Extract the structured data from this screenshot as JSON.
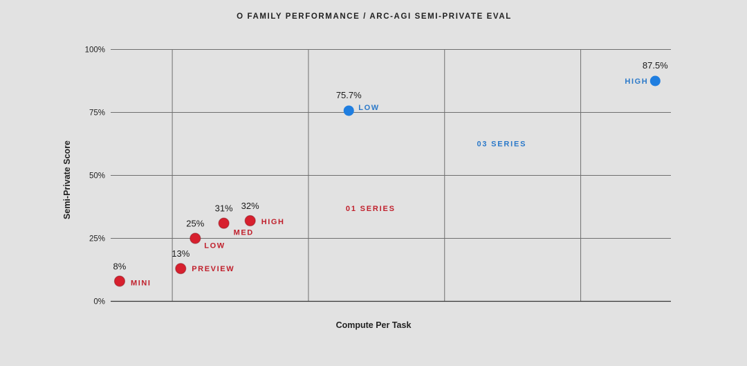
{
  "chart_data": {
    "type": "scatter",
    "title": "O FAMILY PERFORMANCE / ARC-AGI SEMI-PRIVATE EVAL",
    "xlabel": "Compute Per Task",
    "ylabel": "Semi-Private Score",
    "ylim": [
      0,
      100
    ],
    "xlim": [
      0,
      100
    ],
    "yticks": [
      {
        "value": 0,
        "label": "0%"
      },
      {
        "value": 25,
        "label": "25%"
      },
      {
        "value": 50,
        "label": "50%"
      },
      {
        "value": 75,
        "label": "75%"
      },
      {
        "value": 100,
        "label": "100%"
      }
    ],
    "x_gridlines": [
      11,
      35.3,
      59.6,
      83.9
    ],
    "grid": true,
    "series": [
      {
        "name": "01 SERIES",
        "color": "#d7202e",
        "label_color": "#c0202c",
        "region_label": {
          "text": "01 SERIES",
          "x": 46.4,
          "y": 37
        },
        "points": [
          {
            "name": "MINI",
            "x": 1.6,
            "y": 8,
            "value_label": "8%"
          },
          {
            "name": "PREVIEW",
            "x": 12.5,
            "y": 13,
            "value_label": "13%"
          },
          {
            "name": "LOW",
            "x": 15.1,
            "y": 25,
            "value_label": "25%"
          },
          {
            "name": "MED",
            "x": 20.2,
            "y": 31,
            "value_label": "31%"
          },
          {
            "name": "HIGH",
            "x": 24.9,
            "y": 32,
            "value_label": "32%"
          }
        ]
      },
      {
        "name": "03 SERIES",
        "color": "#1f7ee0",
        "label_color": "#2b79c9",
        "region_label": {
          "text": "03 SERIES",
          "x": 69.8,
          "y": 62.6
        },
        "points": [
          {
            "name": "LOW",
            "x": 42.5,
            "y": 75.7,
            "value_label": "75.7%"
          },
          {
            "name": "HIGH",
            "x": 97.2,
            "y": 87.5,
            "value_label": "87.5%"
          }
        ]
      }
    ]
  }
}
